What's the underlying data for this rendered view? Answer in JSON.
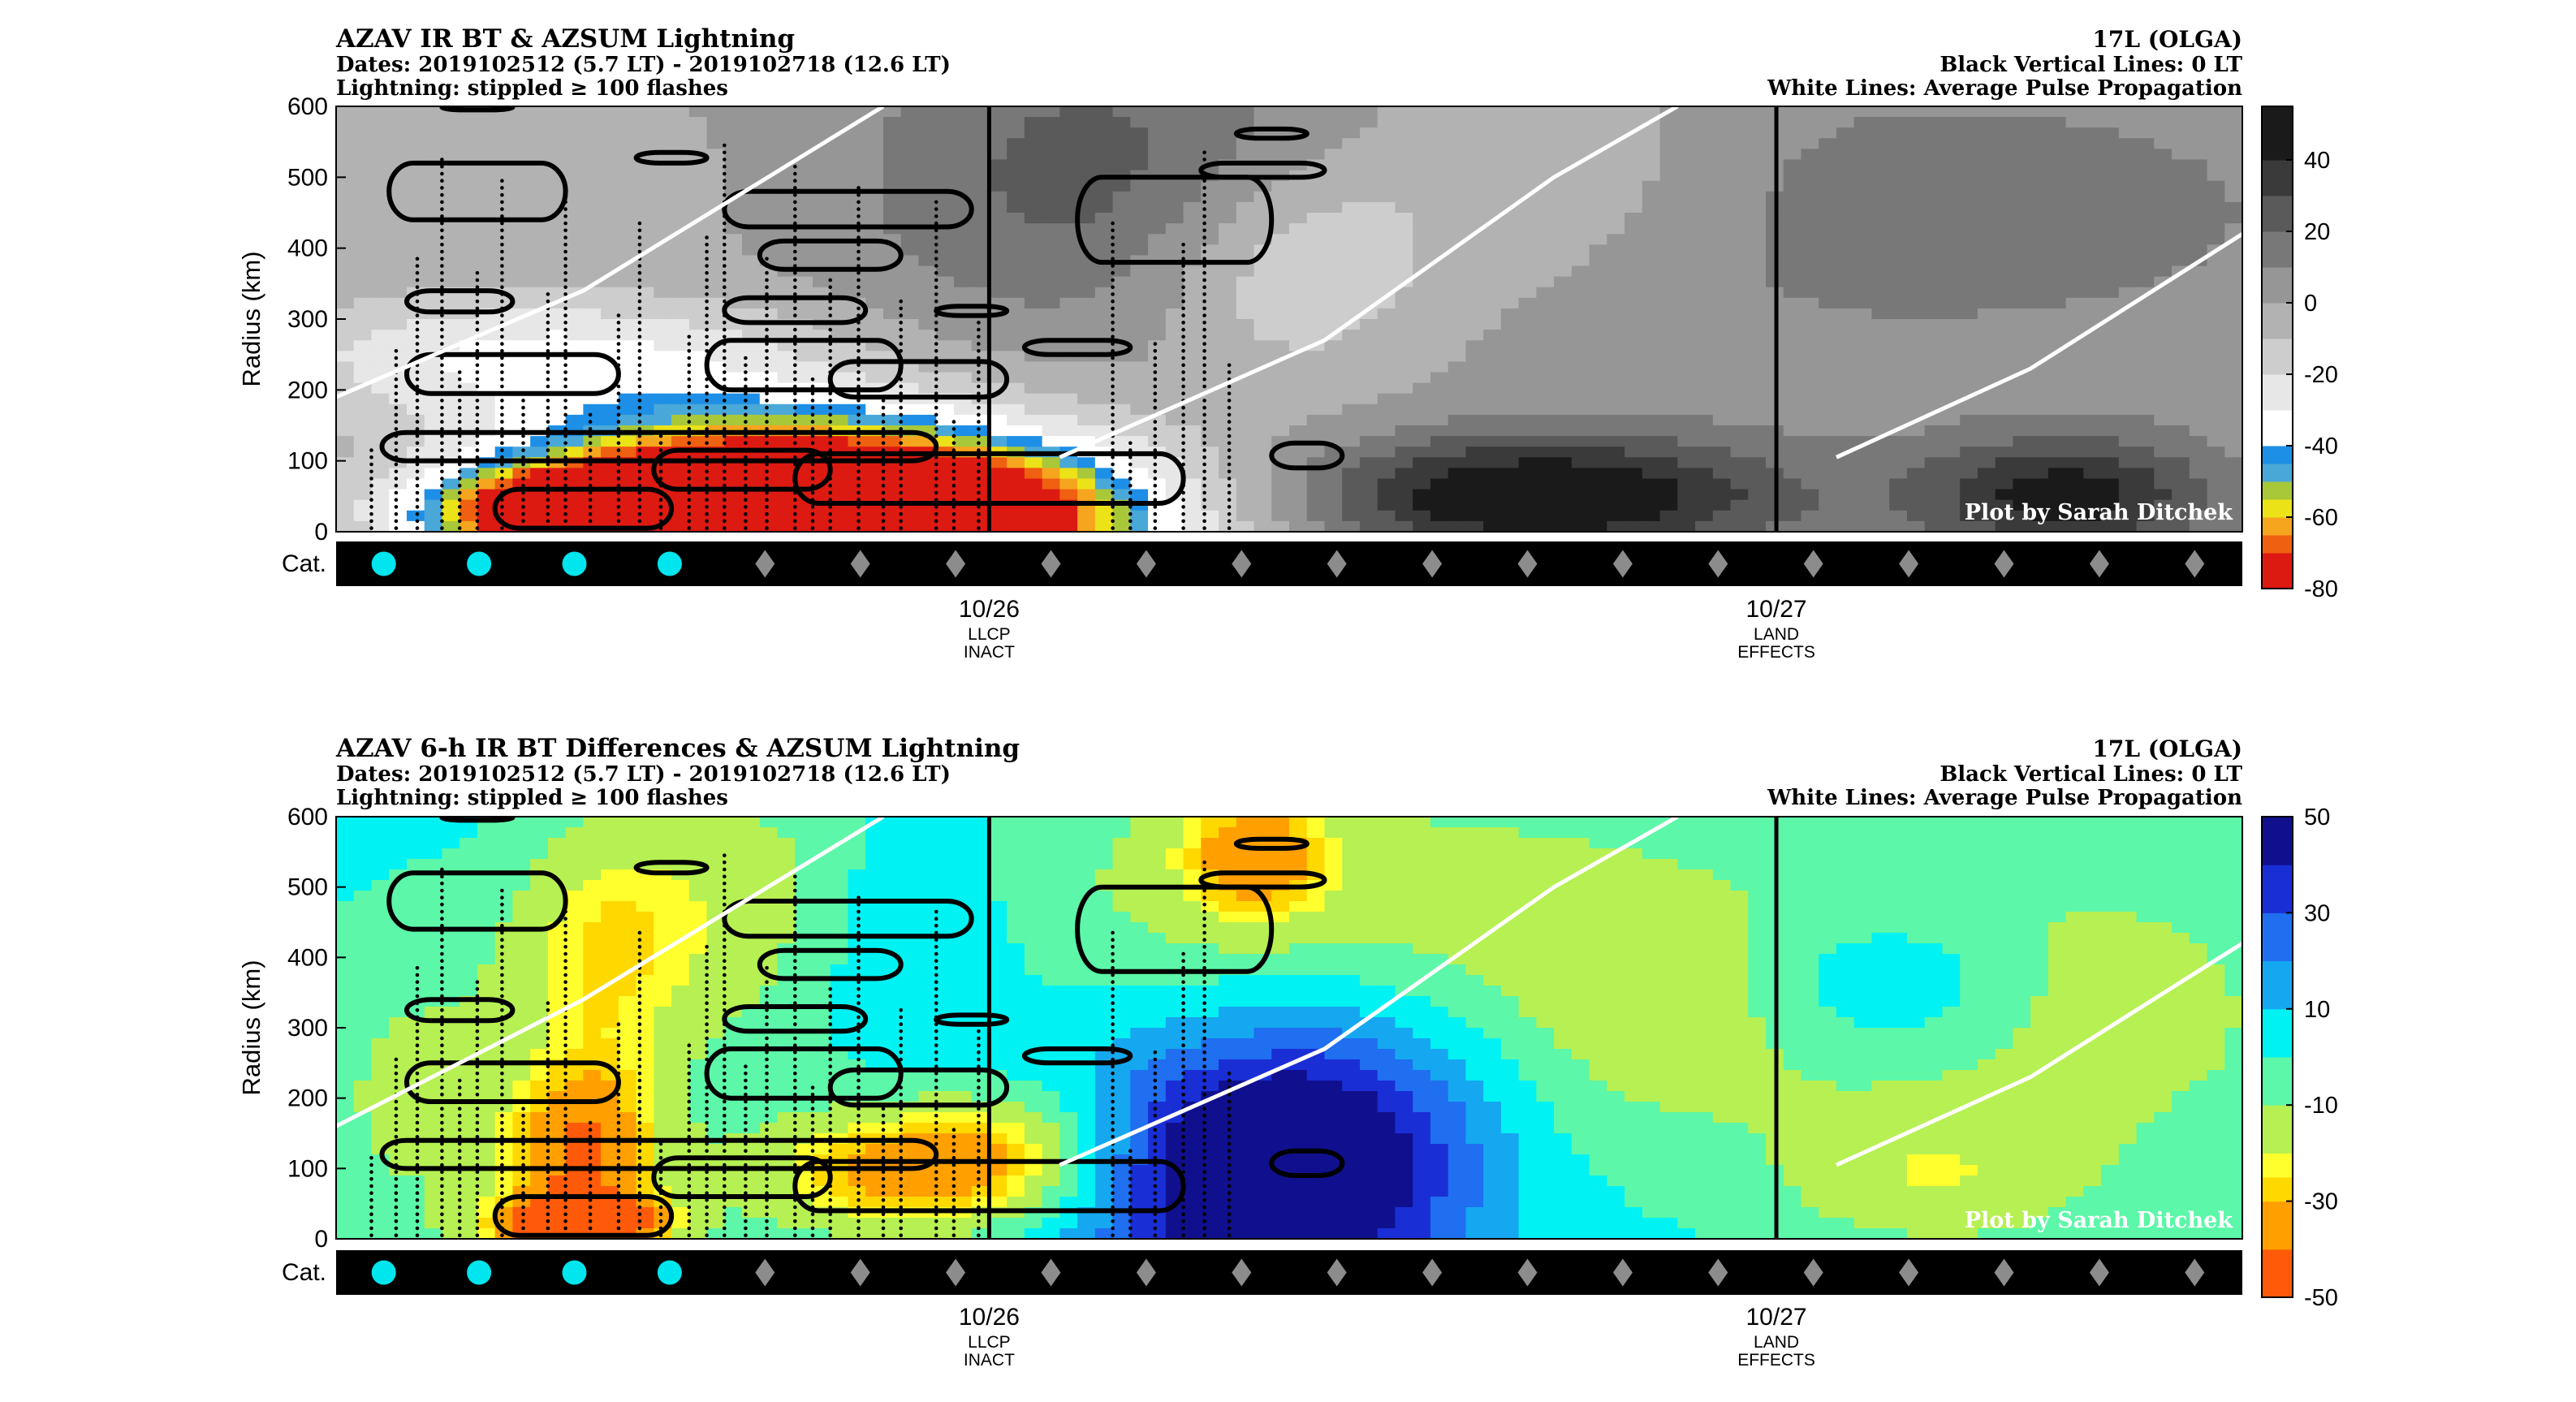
{
  "palettes": {
    "bt": [
      {
        "max": -70,
        "color": "#dd1a12"
      },
      {
        "max": -65,
        "color": "#ef6010"
      },
      {
        "max": -60,
        "color": "#f6a51e"
      },
      {
        "max": -55,
        "color": "#ece218"
      },
      {
        "max": -50,
        "color": "#a8c83a"
      },
      {
        "max": -45,
        "color": "#4aa8d8"
      },
      {
        "max": -40,
        "color": "#1e8fe6"
      },
      {
        "max": -30,
        "color": "#ffffff"
      },
      {
        "max": -20,
        "color": "#e7e7e7"
      },
      {
        "max": -10,
        "color": "#cdcdcd"
      },
      {
        "max": 0,
        "color": "#b2b2b2"
      },
      {
        "max": 10,
        "color": "#969696"
      },
      {
        "max": 20,
        "color": "#787878"
      },
      {
        "max": 30,
        "color": "#5a5a5a"
      },
      {
        "max": 40,
        "color": "#3a3a3a"
      },
      {
        "max": 60,
        "color": "#1a1a1a"
      }
    ],
    "diff": [
      {
        "max": -40,
        "color": "#ff5a0a"
      },
      {
        "max": -30,
        "color": "#ffa000"
      },
      {
        "max": -25,
        "color": "#ffd800"
      },
      {
        "max": -20,
        "color": "#ffff2e"
      },
      {
        "max": -10,
        "color": "#b6f052"
      },
      {
        "max": 0,
        "color": "#5cf7a8"
      },
      {
        "max": 10,
        "color": "#00f2f2"
      },
      {
        "max": 20,
        "color": "#15a8f0"
      },
      {
        "max": 30,
        "color": "#1f6ff0"
      },
      {
        "max": 40,
        "color": "#1a2ed6"
      },
      {
        "max": 60,
        "color": "#10108e"
      }
    ]
  },
  "chart_data": [
    {
      "type": "heatmap",
      "title": "AZAV IR BT & AZSUM Lightning",
      "right_title": "17L (OLGA)",
      "subtitle_left": [
        "Dates: 2019102512 (5.7 LT) - 2019102718 (12.6 LT)",
        "Lightning: stippled ≥ 100 flashes"
      ],
      "subtitle_right": [
        "Black Vertical Lines: 0 LT",
        "White Lines: Average Pulse Propagation"
      ],
      "ylabel": "Radius (km)",
      "ylim": [
        0,
        600
      ],
      "yticks": [
        "0",
        "100",
        "200",
        "300",
        "400",
        "500",
        "600"
      ],
      "xlim": [
        0,
        54
      ],
      "date_ticks": [
        {
          "x": 18.5,
          "label": "10/26",
          "note": [
            "LLCP",
            "INACT"
          ]
        },
        {
          "x": 40.8,
          "label": "10/27",
          "note": [
            "LAND",
            "EFFECTS"
          ]
        }
      ],
      "vlines_0LT": [
        18.5,
        40.8
      ],
      "white_lines": [
        [
          [
            0,
            190
          ],
          [
            7,
            340
          ],
          [
            15.5,
            600
          ]
        ],
        [
          [
            20.5,
            105
          ],
          [
            28,
            270
          ],
          [
            34.5,
            500
          ],
          [
            38,
            600
          ]
        ],
        [
          [
            42.5,
            105
          ],
          [
            48,
            230
          ],
          [
            54,
            420
          ]
        ]
      ],
      "colorbar": {
        "ticks": [
          "40",
          "20",
          "0",
          "-20",
          "-40",
          "-60",
          "-80"
        ],
        "range": [
          -80,
          55
        ]
      },
      "palette": "bt",
      "features": [
        {
          "x": 15,
          "y": 20,
          "value": -115,
          "sx": 6,
          "sy": 80
        },
        {
          "x": 7,
          "y": 25,
          "value": -70,
          "sx": 3.5,
          "sy": 50
        },
        {
          "x": 6,
          "y": 250,
          "value": -30,
          "sx": 6,
          "sy": 60
        },
        {
          "x": 11,
          "y": 140,
          "value": -25,
          "sx": 6,
          "sy": 60
        },
        {
          "x": 5,
          "y": 480,
          "value": -5,
          "sx": 6,
          "sy": 120
        },
        {
          "x": 22,
          "y": 500,
          "value": 25,
          "sx": 5,
          "sy": 150
        },
        {
          "x": 34,
          "y": 50,
          "value": 55,
          "sx": 5,
          "sy": 60
        },
        {
          "x": 49,
          "y": 50,
          "value": 45,
          "sx": 3,
          "sy": 60
        },
        {
          "x": 34,
          "y": 500,
          "value": -15,
          "sx": 4,
          "sy": 120
        },
        {
          "x": 27,
          "y": 380,
          "value": -25,
          "sx": 3,
          "sy": 120
        },
        {
          "x": 44,
          "y": 450,
          "value": 15,
          "sx": 10,
          "sy": 150
        }
      ],
      "base_value": 2,
      "categories": [
        "TS",
        "TS",
        "TS",
        "TS",
        "TD",
        "TD",
        "TD",
        "TD",
        "TD",
        "TD",
        "TD",
        "TD",
        "TD",
        "TD",
        "TD",
        "TD",
        "TD",
        "TD",
        "TD",
        "TD"
      ],
      "category_label": "Cat.",
      "credit": "Plot by Sarah Ditchek"
    },
    {
      "type": "heatmap",
      "title": "AZAV 6-h IR BT Differences & AZSUM Lightning",
      "right_title": "17L (OLGA)",
      "subtitle_left": [
        "Dates: 2019102512 (5.7 LT) - 2019102718 (12.6 LT)",
        "Lightning: stippled ≥ 100 flashes"
      ],
      "subtitle_right": [
        "Black Vertical Lines: 0 LT",
        "White Lines: Average Pulse Propagation"
      ],
      "ylabel": "Radius (km)",
      "ylim": [
        0,
        600
      ],
      "yticks": [
        "0",
        "100",
        "200",
        "300",
        "400",
        "500",
        "600"
      ],
      "xlim": [
        0,
        54
      ],
      "date_ticks": [
        {
          "x": 18.5,
          "label": "10/26",
          "note": [
            "LLCP",
            "INACT"
          ]
        },
        {
          "x": 40.8,
          "label": "10/27",
          "note": [
            "LAND",
            "EFFECTS"
          ]
        }
      ],
      "vlines_0LT": [
        18.5,
        40.8
      ],
      "white_lines": [
        [
          [
            0,
            160
          ],
          [
            7,
            340
          ],
          [
            15.5,
            600
          ]
        ],
        [
          [
            20.5,
            105
          ],
          [
            28,
            270
          ],
          [
            34.5,
            500
          ],
          [
            38,
            600
          ]
        ],
        [
          [
            42.5,
            105
          ],
          [
            48,
            230
          ],
          [
            54,
            420
          ]
        ]
      ],
      "colorbar": {
        "ticks": [
          "50",
          "30",
          "10",
          "-10",
          "-30",
          "-50"
        ],
        "range": [
          -50,
          50
        ]
      },
      "palette": "diff",
      "features": [
        {
          "x": 7,
          "y": 120,
          "value": -35,
          "sx": 1.6,
          "sy": 90
        },
        {
          "x": 7,
          "y": 20,
          "value": -50,
          "sx": 1.8,
          "sy": 30
        },
        {
          "x": 7.5,
          "y": 400,
          "value": -20,
          "sx": 2,
          "sy": 150
        },
        {
          "x": 16,
          "y": 90,
          "value": -30,
          "sx": 3.5,
          "sy": 70
        },
        {
          "x": 19,
          "y": 130,
          "value": -15,
          "sx": 2.5,
          "sy": 60
        },
        {
          "x": 26.5,
          "y": 80,
          "value": 65,
          "sx": 3.6,
          "sy": 120
        },
        {
          "x": 29,
          "y": 240,
          "value": 20,
          "sx": 4,
          "sy": 110
        },
        {
          "x": 16,
          "y": 450,
          "value": 22,
          "sx": 2.2,
          "sy": 120
        },
        {
          "x": 26,
          "y": 550,
          "value": -22,
          "sx": 1.5,
          "sy": 70
        },
        {
          "x": 27,
          "y": 500,
          "value": -14,
          "sx": 8,
          "sy": 140
        },
        {
          "x": 12,
          "y": 470,
          "value": -13,
          "sx": 3,
          "sy": 160
        },
        {
          "x": 44,
          "y": 360,
          "value": 24,
          "sx": 2.5,
          "sy": 70
        },
        {
          "x": 49,
          "y": 320,
          "value": -14,
          "sx": 7,
          "sy": 220
        },
        {
          "x": 36,
          "y": 300,
          "value": -12,
          "sx": 4,
          "sy": 150
        },
        {
          "x": 45,
          "y": 80,
          "value": -11,
          "sx": 3,
          "sy": 70
        },
        {
          "x": 2,
          "y": 200,
          "value": -12,
          "sx": 2.5,
          "sy": 200
        }
      ],
      "base_value": 5,
      "categories": [
        "TS",
        "TS",
        "TS",
        "TS",
        "TD",
        "TD",
        "TD",
        "TD",
        "TD",
        "TD",
        "TD",
        "TD",
        "TD",
        "TD",
        "TD",
        "TD",
        "TD",
        "TD",
        "TD",
        "TD"
      ],
      "category_label": "Cat.",
      "credit": "Plot by Sarah Ditchek"
    }
  ],
  "lightning": {
    "stipple_columns": [
      1,
      1.7,
      2.3,
      3,
      3.5,
      4,
      4.7,
      5.3,
      6,
      6.5,
      7.2,
      8,
      8.6,
      9.2,
      10,
      10.5,
      11,
      11.6,
      12.2,
      13,
      13.5,
      14,
      14.8,
      15.5,
      16,
      17,
      17.5,
      18.2,
      22,
      22.5,
      23.2,
      24,
      24.6,
      25.3
    ],
    "contours": [
      {
        "x": [
          1.3,
          17
        ],
        "y": [
          100,
          140
        ],
        "shape": "wide"
      },
      {
        "x": [
          4.5,
          9.5
        ],
        "y": [
          5,
          60
        ],
        "shape": "wide"
      },
      {
        "x": [
          13,
          24
        ],
        "y": [
          40,
          110
        ],
        "shape": "wide"
      },
      {
        "x": [
          9,
          14
        ],
        "y": [
          60,
          115
        ],
        "shape": "wide"
      },
      {
        "x": [
          2,
          8
        ],
        "y": [
          195,
          250
        ],
        "shape": "wide"
      },
      {
        "x": [
          10.5,
          16
        ],
        "y": [
          200,
          270
        ],
        "shape": "wide"
      },
      {
        "x": [
          14,
          19
        ],
        "y": [
          190,
          240
        ],
        "shape": "wide"
      },
      {
        "x": [
          11,
          15
        ],
        "y": [
          295,
          330
        ],
        "shape": "wide"
      },
      {
        "x": [
          11,
          18
        ],
        "y": [
          430,
          480
        ],
        "shape": "wide"
      },
      {
        "x": [
          12,
          16
        ],
        "y": [
          370,
          410
        ],
        "shape": "wide"
      },
      {
        "x": [
          1.5,
          6.5
        ],
        "y": [
          440,
          520
        ],
        "shape": "wide"
      },
      {
        "x": [
          2,
          5
        ],
        "y": [
          310,
          340
        ],
        "shape": "wide"
      },
      {
        "x": [
          21,
          26.5
        ],
        "y": [
          380,
          500
        ],
        "shape": "wide"
      },
      {
        "x": [
          19.5,
          22.5
        ],
        "y": [
          250,
          270
        ],
        "shape": "wide"
      },
      {
        "x": [
          24.5,
          28
        ],
        "y": [
          500,
          520
        ],
        "shape": "wide"
      },
      {
        "x": [
          26.5,
          28.5
        ],
        "y": [
          90,
          125
        ],
        "shape": "wide"
      },
      {
        "x": [
          17,
          19
        ],
        "y": [
          305,
          318
        ],
        "shape": "wide"
      },
      {
        "x": [
          8.5,
          10.5
        ],
        "y": [
          520,
          535
        ],
        "shape": "wide"
      },
      {
        "x": [
          25.5,
          27.5
        ],
        "y": [
          555,
          568
        ],
        "shape": "wide"
      },
      {
        "x": [
          3,
          5
        ],
        "y": [
          595,
          602
        ],
        "shape": "wide"
      }
    ]
  }
}
